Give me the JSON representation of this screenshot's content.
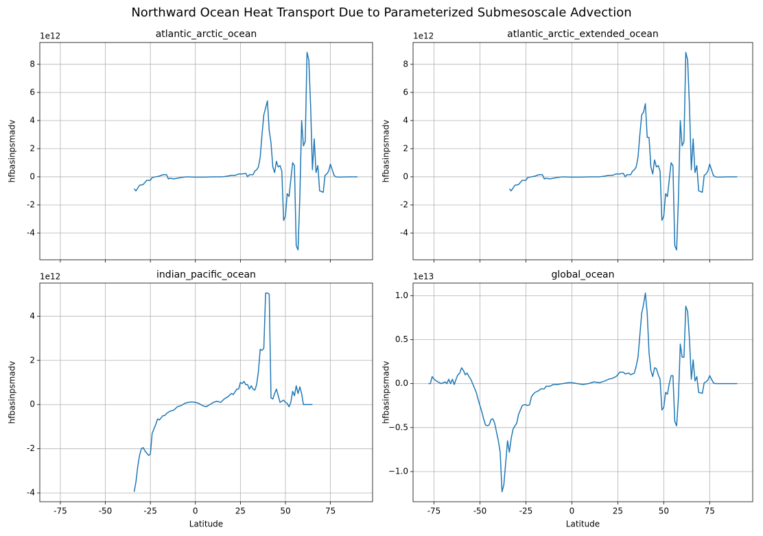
{
  "title": "Northward Ocean Heat Transport Due to Parameterized Submesoscale Advection",
  "chart_data": [
    {
      "type": "line",
      "title": "atlantic_arctic_ocean",
      "ylabel": "hfbasinpsmadv",
      "y_offset_text": "1e12",
      "color": "#1f77b4",
      "x": [
        -34,
        -33,
        -32,
        -31,
        -29,
        -28,
        -27,
        -25,
        -24,
        -22,
        -20,
        -18,
        -16,
        -15,
        -14,
        -12,
        -10,
        -8,
        -5,
        0,
        5,
        10,
        15,
        18,
        20,
        22,
        24,
        26,
        28,
        29,
        30,
        32,
        33,
        34,
        35,
        36,
        37,
        38,
        39,
        40,
        41,
        42,
        43,
        44,
        45,
        46,
        47,
        48,
        49,
        50,
        51,
        52,
        53,
        54,
        55,
        56,
        57,
        58,
        59,
        60,
        61,
        62,
        63,
        64,
        65,
        66,
        67,
        68,
        69,
        71,
        72,
        73,
        74,
        75,
        76,
        77,
        78,
        80,
        85,
        90
      ],
      "values": [
        -0.85,
        -1.0,
        -0.8,
        -0.6,
        -0.55,
        -0.4,
        -0.25,
        -0.25,
        -0.05,
        0.0,
        0.05,
        0.15,
        0.15,
        -0.15,
        -0.1,
        -0.15,
        -0.1,
        -0.05,
        0.0,
        -0.02,
        -0.02,
        0.0,
        0.0,
        0.05,
        0.1,
        0.1,
        0.2,
        0.2,
        0.25,
        0.0,
        0.15,
        0.15,
        0.4,
        0.5,
        0.7,
        1.4,
        3.0,
        4.4,
        4.9,
        5.4,
        3.3,
        2.4,
        0.7,
        0.3,
        1.1,
        0.7,
        0.8,
        0.4,
        -3.1,
        -2.8,
        -1.2,
        -1.4,
        -0.2,
        1.0,
        0.8,
        -4.9,
        -5.2,
        -1.5,
        4.0,
        2.2,
        2.5,
        8.85,
        8.3,
        5.0,
        0.5,
        2.7,
        0.3,
        0.8,
        -1.0,
        -1.1,
        0.1,
        0.2,
        0.4,
        0.9,
        0.5,
        0.1,
        0.0,
        -0.02,
        0.0,
        0.0
      ],
      "xlim": [
        -86.4,
        98.4
      ],
      "ylim": [
        -5.9,
        9.55
      ],
      "xticks": [
        -75,
        -50,
        -25,
        0,
        25,
        50,
        75
      ],
      "yticks": [
        -4,
        -2,
        0,
        2,
        4,
        6,
        8
      ],
      "grid": true,
      "show_xtick_labels": false
    },
    {
      "type": "line",
      "title": "atlantic_arctic_extended_ocean",
      "ylabel": "hfbasinpsmadv",
      "y_offset_text": "1e12",
      "color": "#1f77b4",
      "x": [
        -34,
        -33,
        -32,
        -31,
        -29,
        -28,
        -27,
        -25,
        -24,
        -22,
        -20,
        -18,
        -16,
        -15,
        -14,
        -12,
        -10,
        -8,
        -5,
        0,
        5,
        10,
        15,
        18,
        20,
        22,
        24,
        26,
        28,
        29,
        30,
        32,
        33,
        34,
        35,
        36,
        37,
        38,
        39,
        40,
        41,
        42,
        43,
        44,
        45,
        46,
        47,
        48,
        49,
        50,
        51,
        52,
        53,
        54,
        55,
        56,
        57,
        58,
        59,
        60,
        61,
        62,
        63,
        64,
        65,
        66,
        67,
        68,
        69,
        71,
        72,
        73,
        74,
        75,
        76,
        77,
        78,
        80,
        85,
        90
      ],
      "values": [
        -0.85,
        -1.0,
        -0.8,
        -0.6,
        -0.55,
        -0.4,
        -0.25,
        -0.25,
        -0.05,
        0.0,
        0.05,
        0.15,
        0.15,
        -0.15,
        -0.1,
        -0.15,
        -0.1,
        -0.05,
        0.0,
        -0.02,
        -0.02,
        0.0,
        0.0,
        0.05,
        0.1,
        0.1,
        0.2,
        0.2,
        0.25,
        0.0,
        0.15,
        0.15,
        0.4,
        0.5,
        0.7,
        1.4,
        3.0,
        4.4,
        4.6,
        5.2,
        2.8,
        2.8,
        0.7,
        0.2,
        1.2,
        0.7,
        0.8,
        0.4,
        -3.1,
        -2.8,
        -1.2,
        -1.4,
        -0.2,
        1.0,
        0.8,
        -4.9,
        -5.2,
        -1.5,
        4.0,
        2.2,
        2.5,
        8.85,
        8.3,
        5.0,
        0.5,
        2.7,
        0.3,
        0.8,
        -1.0,
        -1.1,
        0.1,
        0.2,
        0.4,
        0.9,
        0.5,
        0.1,
        0.0,
        -0.02,
        0.0,
        0.0
      ],
      "xlim": [
        -86.4,
        98.4
      ],
      "ylim": [
        -5.9,
        9.55
      ],
      "xticks": [
        -75,
        -50,
        -25,
        0,
        25,
        50,
        75
      ],
      "yticks": [
        -4,
        -2,
        0,
        2,
        4,
        6,
        8
      ],
      "grid": true,
      "show_xtick_labels": false
    },
    {
      "type": "line",
      "title": "indian_pacific_ocean",
      "xlabel": "Latitude",
      "ylabel": "hfbasinpsmadv",
      "y_offset_text": "1e12",
      "color": "#1f77b4",
      "x": [
        -34,
        -33,
        -32,
        -31,
        -30,
        -29,
        -28,
        -27,
        -26,
        -25,
        -24,
        -23,
        -22,
        -21,
        -20,
        -19,
        -18,
        -17,
        -16,
        -14,
        -12,
        -10,
        -8,
        -6,
        -4,
        -2,
        0,
        2,
        4,
        6,
        8,
        10,
        12,
        14,
        16,
        18,
        20,
        21,
        23,
        24,
        25,
        26,
        27,
        28,
        29,
        30,
        31,
        32,
        33,
        34,
        35,
        36,
        37,
        38,
        39,
        40,
        41,
        42,
        43,
        44,
        45,
        46,
        47,
        48,
        49,
        50,
        51,
        52,
        53,
        54,
        55,
        56,
        57,
        58,
        59,
        60,
        62,
        65
      ],
      "values": [
        -3.95,
        -3.5,
        -2.8,
        -2.3,
        -2.0,
        -1.95,
        -2.1,
        -2.2,
        -2.3,
        -2.25,
        -1.3,
        -1.1,
        -0.9,
        -0.65,
        -0.7,
        -0.6,
        -0.5,
        -0.5,
        -0.4,
        -0.3,
        -0.25,
        -0.1,
        -0.05,
        0.05,
        0.1,
        0.12,
        0.1,
        0.05,
        -0.05,
        -0.1,
        0.0,
        0.1,
        0.15,
        0.1,
        0.25,
        0.35,
        0.5,
        0.45,
        0.7,
        0.7,
        1.0,
        0.95,
        1.05,
        0.9,
        0.9,
        0.7,
        0.85,
        0.7,
        0.65,
        0.9,
        1.5,
        2.5,
        2.45,
        2.55,
        5.05,
        5.05,
        5.0,
        0.3,
        0.25,
        0.5,
        0.7,
        0.4,
        0.1,
        0.15,
        0.2,
        0.1,
        0.05,
        -0.1,
        0.1,
        0.6,
        0.4,
        0.85,
        0.5,
        0.8,
        0.5,
        0.0,
        0.0,
        0.0
      ],
      "xlim": [
        -86.4,
        98.4
      ],
      "ylim": [
        -4.4,
        5.5
      ],
      "xticks": [
        -75,
        -50,
        -25,
        0,
        25,
        50,
        75
      ],
      "yticks": [
        -4,
        -2,
        0,
        2,
        4
      ],
      "grid": true,
      "show_xtick_labels": true
    },
    {
      "type": "line",
      "title": "global_ocean",
      "xlabel": "Latitude",
      "ylabel": "hfbasinpsmadv",
      "y_offset_text": "1e13",
      "color": "#1f77b4",
      "x": [
        -78,
        -77,
        -76,
        -75,
        -73,
        -71,
        -69,
        -68,
        -67,
        -66,
        -65,
        -64,
        -63,
        -62,
        -61,
        -60,
        -59,
        -58,
        -57,
        -56,
        -55,
        -54,
        -53,
        -52,
        -51,
        -50,
        -49,
        -48,
        -47,
        -46,
        -45,
        -44,
        -43,
        -42,
        -41,
        -40,
        -39,
        -38,
        -37,
        -36,
        -35,
        -34,
        -33,
        -32,
        -31,
        -30,
        -29,
        -28,
        -27,
        -26,
        -25,
        -24,
        -23,
        -22,
        -21,
        -20,
        -18,
        -17,
        -15,
        -14,
        -12,
        -10,
        -8,
        -5,
        -2,
        0,
        3,
        6,
        9,
        12,
        15,
        18,
        20,
        22,
        24,
        25,
        26,
        28,
        29,
        31,
        32,
        34,
        35,
        36,
        37,
        38,
        39,
        40,
        41,
        42,
        43,
        44,
        45,
        46,
        47,
        48,
        49,
        50,
        51,
        52,
        53,
        54,
        55,
        56,
        57,
        58,
        59,
        60,
        61,
        62,
        63,
        64,
        65,
        66,
        67,
        68,
        69,
        71,
        72,
        73,
        74,
        75,
        76,
        77,
        78,
        80,
        85,
        90
      ],
      "values": [
        0.0,
        0.0,
        0.08,
        0.05,
        0.02,
        0.0,
        0.02,
        0.0,
        0.05,
        0.0,
        0.05,
        -0.01,
        0.05,
        0.1,
        0.12,
        0.18,
        0.15,
        0.1,
        0.12,
        0.08,
        0.05,
        0.0,
        -0.05,
        -0.1,
        -0.18,
        -0.25,
        -0.32,
        -0.4,
        -0.47,
        -0.48,
        -0.47,
        -0.41,
        -0.4,
        -0.45,
        -0.55,
        -0.65,
        -0.78,
        -1.23,
        -1.15,
        -0.9,
        -0.65,
        -0.78,
        -0.62,
        -0.52,
        -0.48,
        -0.45,
        -0.35,
        -0.3,
        -0.25,
        -0.24,
        -0.24,
        -0.25,
        -0.24,
        -0.15,
        -0.12,
        -0.1,
        -0.08,
        -0.06,
        -0.06,
        -0.03,
        -0.03,
        -0.01,
        -0.01,
        0.0,
        0.01,
        0.01,
        0.0,
        -0.01,
        0.0,
        0.02,
        0.01,
        0.03,
        0.05,
        0.06,
        0.08,
        0.1,
        0.13,
        0.13,
        0.11,
        0.12,
        0.1,
        0.12,
        0.2,
        0.3,
        0.55,
        0.8,
        0.9,
        1.03,
        0.8,
        0.35,
        0.15,
        0.08,
        0.18,
        0.17,
        0.1,
        0.05,
        -0.3,
        -0.27,
        -0.1,
        -0.12,
        0.0,
        0.09,
        0.09,
        -0.43,
        -0.48,
        -0.15,
        0.45,
        0.3,
        0.3,
        0.88,
        0.82,
        0.5,
        0.05,
        0.27,
        0.03,
        0.08,
        -0.1,
        -0.11,
        0.01,
        0.02,
        0.04,
        0.09,
        0.05,
        0.01,
        0.0,
        0.0,
        0.0,
        0.0
      ],
      "xlim": [
        -86.4,
        98.4
      ],
      "ylim": [
        -1.343,
        1.143
      ],
      "xticks": [
        -75,
        -50,
        -25,
        0,
        25,
        50,
        75
      ],
      "yticks": [
        {
          "value": -1.0,
          "label": "−1.0"
        },
        {
          "value": -0.5,
          "label": "−0.5"
        },
        {
          "value": 0.0,
          "label": "0.0"
        },
        {
          "value": 0.5,
          "label": "0.5"
        },
        {
          "value": 1.0,
          "label": "1.0"
        }
      ],
      "grid": true,
      "show_xtick_labels": true
    }
  ]
}
